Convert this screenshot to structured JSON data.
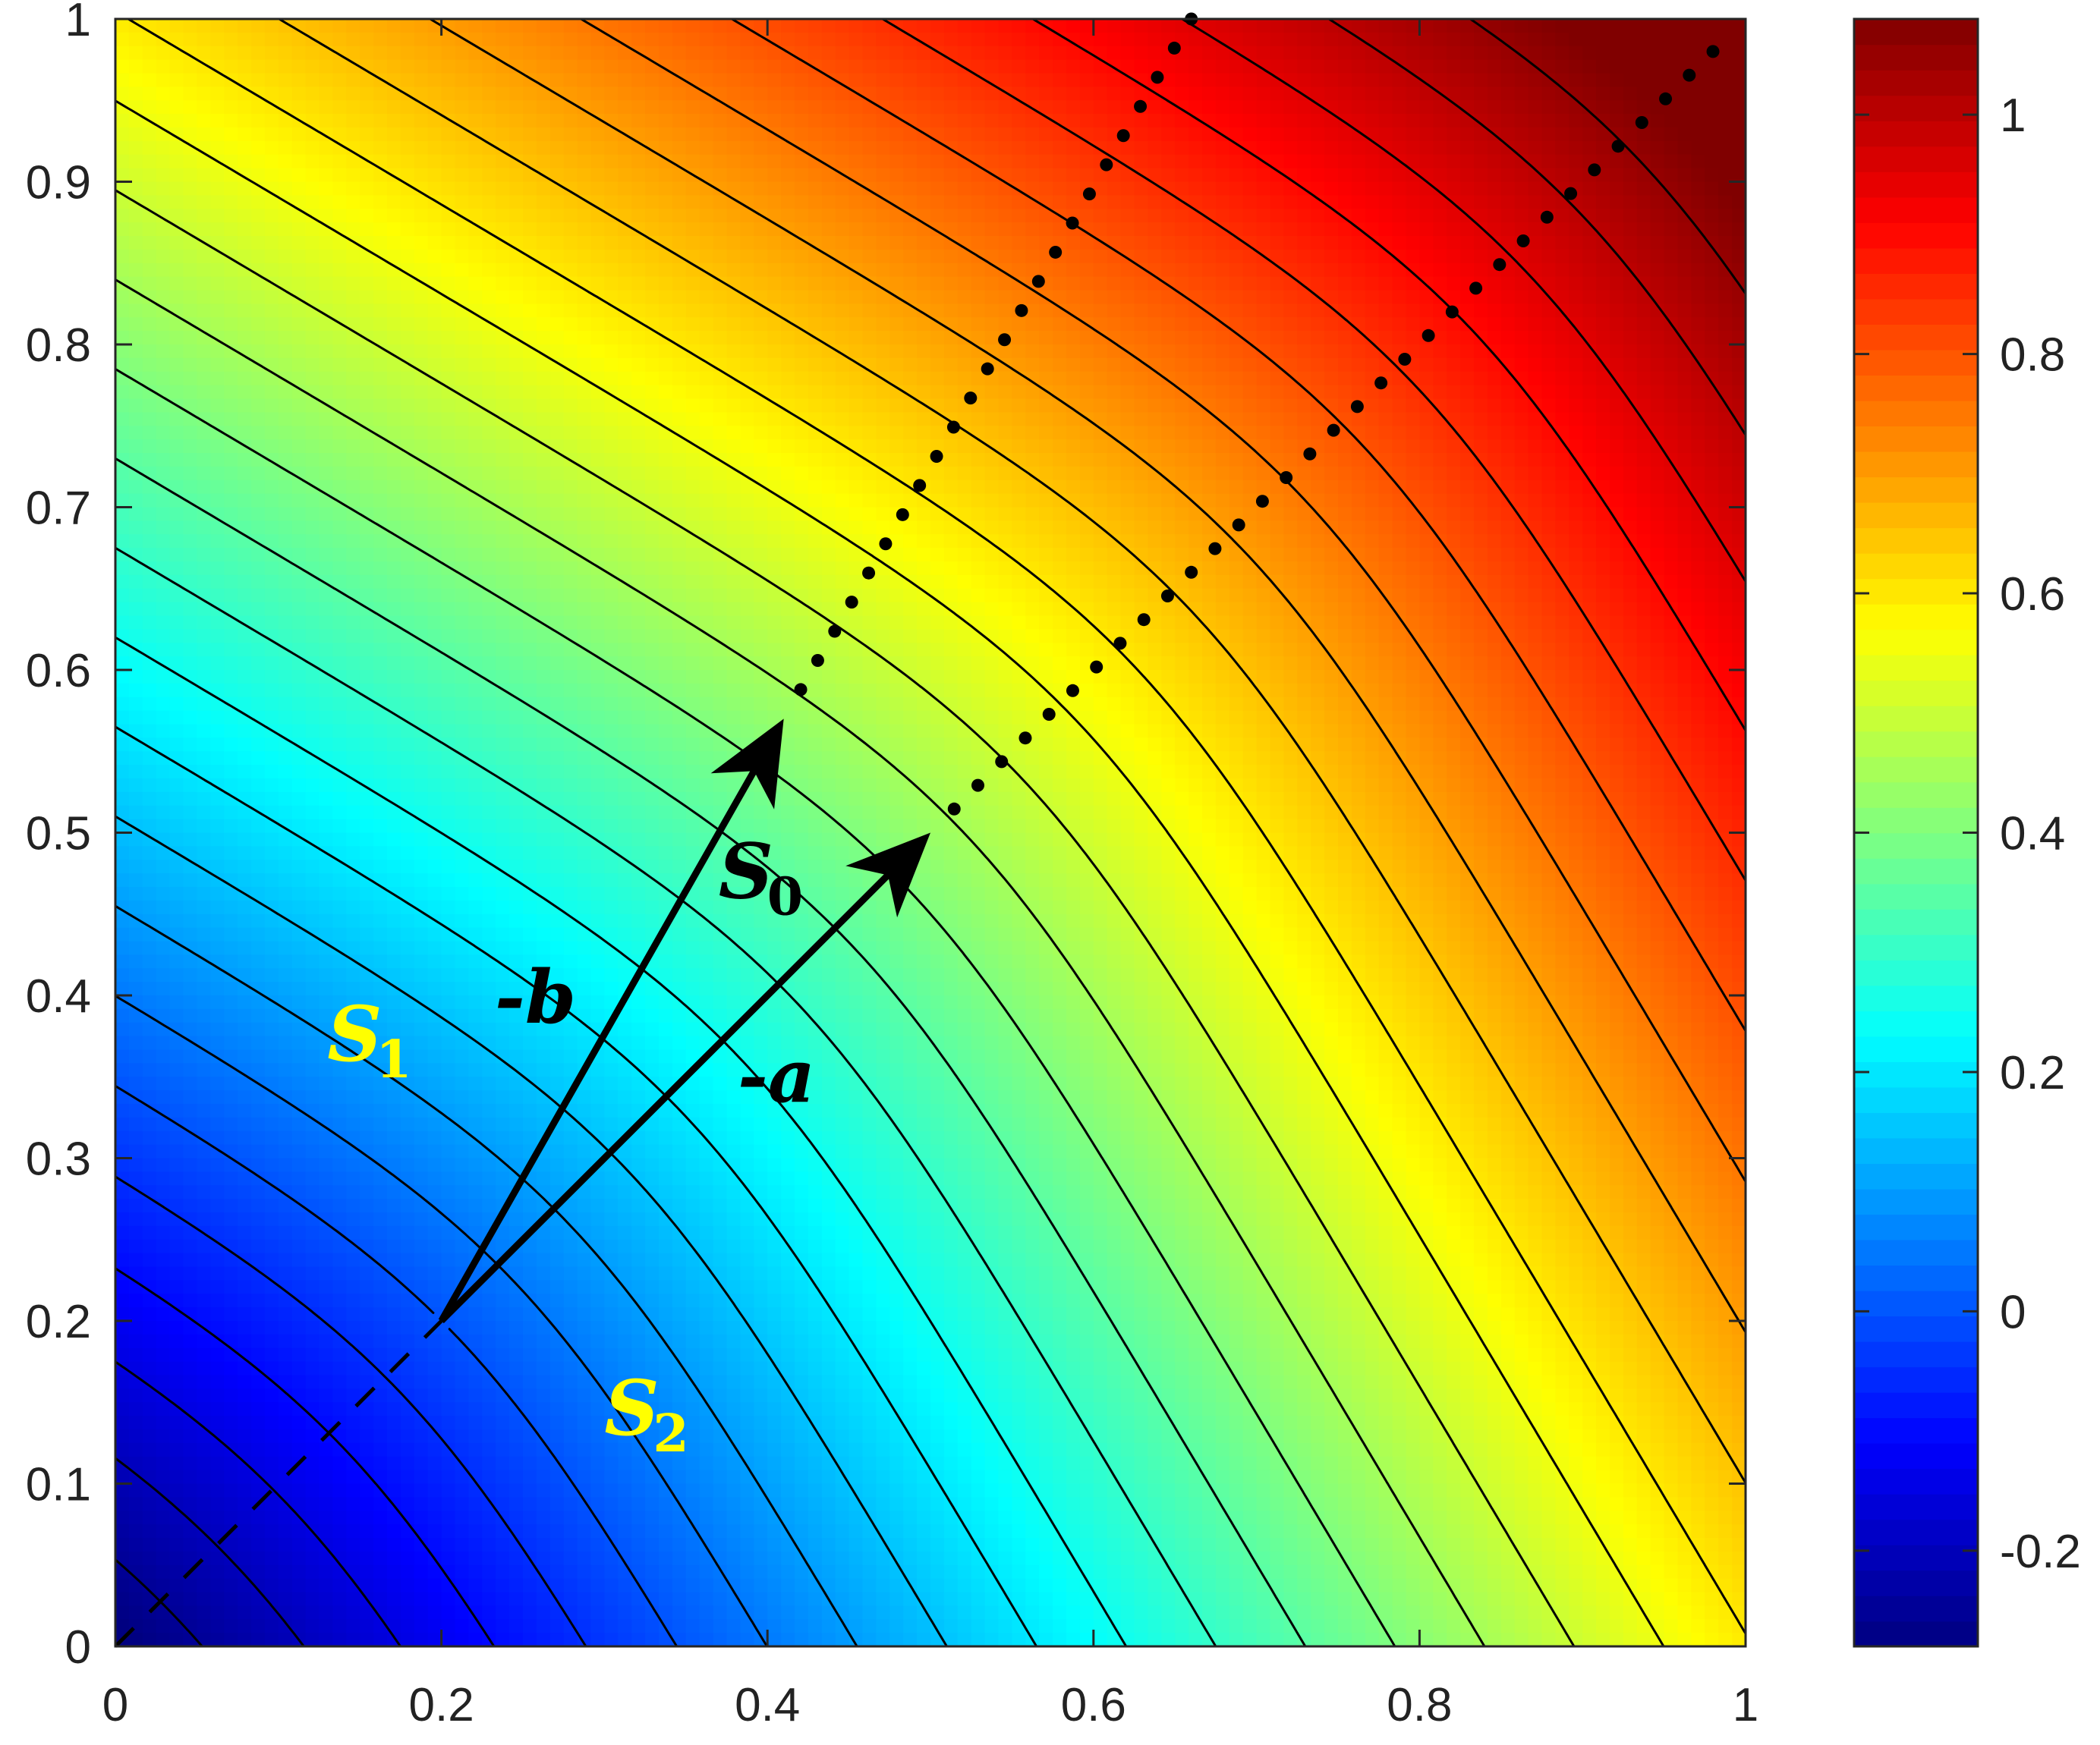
{
  "chart_data": {
    "type": "contour",
    "title": "",
    "xlabel": "",
    "ylabel": "",
    "xlim": [
      0,
      1
    ],
    "ylim": [
      0,
      1
    ],
    "x_ticks": [
      "0",
      "0.2",
      "0.4",
      "0.6",
      "0.8",
      "1"
    ],
    "x_tick_values": [
      0,
      0.2,
      0.4,
      0.6,
      0.8,
      1
    ],
    "y_ticks": [
      "0",
      "0.1",
      "0.2",
      "0.3",
      "0.4",
      "0.5",
      "0.6",
      "0.7",
      "0.8",
      "0.9",
      "1"
    ],
    "y_tick_values": [
      0,
      0.1,
      0.2,
      0.3,
      0.4,
      0.5,
      0.6,
      0.7,
      0.8,
      0.9,
      1
    ],
    "colorbar": {
      "colormap": "jet",
      "range": [
        -0.28,
        1.08
      ],
      "ticks": [
        "-0.2",
        "0",
        "0.2",
        "0.4",
        "0.6",
        "0.8",
        "1"
      ],
      "tick_values": [
        -0.2,
        0,
        0.2,
        0.4,
        0.6,
        0.8,
        1
      ]
    },
    "surface": {
      "center": [
        0.2,
        0.2
      ],
      "center_value": 0.0,
      "vector_a": [
        0.3,
        0.3
      ],
      "vector_b": [
        0.21,
        0.37
      ],
      "contour_levels": [
        -0.25,
        -0.2,
        -0.15,
        -0.1,
        -0.05,
        0.0,
        0.05,
        0.1,
        0.15,
        0.2,
        0.25,
        0.3,
        0.35,
        0.4,
        0.45,
        0.5,
        0.55,
        0.6,
        0.65,
        0.7,
        0.75,
        0.8,
        0.85,
        0.9,
        0.95,
        1.0,
        1.05
      ]
    },
    "annotations": {
      "arrow_a": {
        "label": "-a",
        "from": [
          0.2,
          0.2
        ],
        "to": [
          0.5,
          0.5
        ]
      },
      "arrow_b": {
        "label": "-b",
        "from": [
          0.2,
          0.2
        ],
        "to": [
          0.41,
          0.57
        ]
      },
      "dotted_a": {
        "from": [
          0.5,
          0.5
        ],
        "to": [
          0.98,
          0.98
        ]
      },
      "dotted_b": {
        "from": [
          0.41,
          0.57
        ],
        "to": [
          0.66,
          1.0
        ]
      },
      "dashed_line": {
        "from": [
          0.0,
          0.0
        ],
        "to": [
          0.2,
          0.2
        ]
      },
      "region_labels": [
        {
          "main": "S",
          "sub": "1",
          "x": 0.13,
          "y": 0.36,
          "color": "#ffff00"
        },
        {
          "main": "S",
          "sub": "2",
          "x": 0.3,
          "y": 0.13,
          "color": "#ffff00"
        },
        {
          "main": "S",
          "sub": "0",
          "x": 0.37,
          "y": 0.46,
          "color": "#000000"
        }
      ]
    }
  }
}
